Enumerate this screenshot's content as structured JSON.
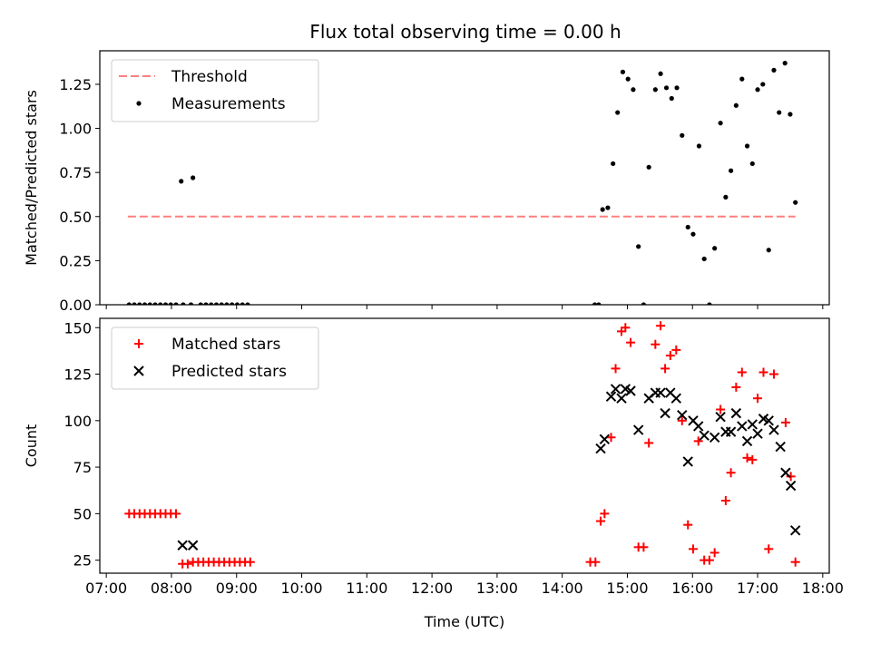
{
  "title": "Flux total observing time = 0.00 h",
  "chart_data": [
    {
      "type": "scatter",
      "panel": "top",
      "ylabel": "Matched/Predicted stars",
      "ylim": [
        0,
        1.44
      ],
      "yticks": [
        0.0,
        0.25,
        0.5,
        0.75,
        1.0,
        1.25
      ],
      "ytick_labels": [
        "0.00",
        "0.25",
        "0.50",
        "0.75",
        "1.00",
        "1.25"
      ],
      "xlim": [
        6.9,
        18.1
      ],
      "legend": {
        "placement": "top-left"
      },
      "threshold": {
        "name": "Threshold",
        "x": [
          7.33,
          17.58
        ],
        "y": 0.5,
        "color": "#ff7f7f"
      },
      "series": [
        {
          "name": "Measurements",
          "color": "#000000",
          "x": [
            7.35,
            7.43,
            7.51,
            7.59,
            7.67,
            7.75,
            7.83,
            7.91,
            7.99,
            8.07,
            8.15,
            8.18,
            8.3,
            8.33,
            8.45,
            8.53,
            8.61,
            8.69,
            8.77,
            8.85,
            8.93,
            9.01,
            9.09,
            9.17,
            14.5,
            14.56,
            14.62,
            14.7,
            14.78,
            14.85,
            14.93,
            15.01,
            15.09,
            15.17,
            15.25,
            15.33,
            15.43,
            15.51,
            15.6,
            15.68,
            15.76,
            15.84,
            15.93,
            16.01,
            16.1,
            16.18,
            16.26,
            16.34,
            16.43,
            16.51,
            16.59,
            16.67,
            16.76,
            16.84,
            16.92,
            17.0,
            17.08,
            17.17,
            17.25,
            17.33,
            17.42,
            17.5,
            17.58
          ],
          "y": [
            0.0,
            0.0,
            0.0,
            0.0,
            0.0,
            0.0,
            0.0,
            0.0,
            0.0,
            0.0,
            0.7,
            0.0,
            0.0,
            0.72,
            0.0,
            0.0,
            0.0,
            0.0,
            0.0,
            0.0,
            0.0,
            0.0,
            0.0,
            0.0,
            0.0,
            0.0,
            0.54,
            0.55,
            0.8,
            1.09,
            1.32,
            1.28,
            1.22,
            0.33,
            0.0,
            0.78,
            1.22,
            1.31,
            1.23,
            1.17,
            1.23,
            0.96,
            0.44,
            0.4,
            0.9,
            0.26,
            0.0,
            0.32,
            1.03,
            0.61,
            0.76,
            1.13,
            1.28,
            0.9,
            0.8,
            1.22,
            1.25,
            0.31,
            1.33,
            1.09,
            1.37,
            1.08,
            0.58
          ]
        }
      ]
    },
    {
      "type": "scatter",
      "panel": "bottom",
      "xlabel": "Time (UTC)",
      "ylabel": "Count",
      "ylim": [
        18,
        155
      ],
      "yticks": [
        25,
        50,
        75,
        100,
        125,
        150
      ],
      "ytick_labels": [
        "25",
        "50",
        "75",
        "100",
        "125",
        "150"
      ],
      "xlim": [
        6.9,
        18.1
      ],
      "xticks": [
        7,
        8,
        9,
        10,
        11,
        12,
        13,
        14,
        15,
        16,
        17,
        18
      ],
      "xtick_labels": [
        "07:00",
        "08:00",
        "09:00",
        "10:00",
        "11:00",
        "12:00",
        "13:00",
        "14:00",
        "15:00",
        "16:00",
        "17:00",
        "18:00"
      ],
      "legend": {
        "placement": "top-left"
      },
      "series": [
        {
          "name": "Matched stars",
          "marker": "plus",
          "color": "#ff0000",
          "x": [
            7.35,
            7.43,
            7.51,
            7.59,
            7.67,
            7.75,
            7.83,
            7.91,
            7.99,
            8.07,
            8.17,
            8.25,
            8.33,
            8.41,
            8.49,
            8.57,
            8.65,
            8.73,
            8.81,
            8.89,
            8.97,
            9.05,
            9.13,
            9.21,
            14.43,
            14.51,
            14.59,
            14.65,
            14.75,
            14.82,
            14.91,
            14.97,
            15.05,
            15.17,
            15.25,
            15.33,
            15.43,
            15.51,
            15.58,
            15.66,
            15.75,
            15.84,
            15.93,
            16.01,
            16.09,
            16.18,
            16.26,
            16.34,
            16.43,
            16.51,
            16.59,
            16.67,
            16.76,
            16.84,
            16.92,
            17.0,
            17.09,
            17.17,
            17.25,
            17.43,
            17.51,
            17.58
          ],
          "y": [
            50,
            50,
            50,
            50,
            50,
            50,
            50,
            50,
            50,
            50,
            23,
            23,
            24,
            24,
            24,
            24,
            24,
            24,
            24,
            24,
            24,
            24,
            24,
            24,
            24,
            24,
            46,
            50,
            91,
            128,
            148,
            150,
            142,
            32,
            32,
            88,
            141,
            151,
            128,
            135,
            138,
            100,
            44,
            31,
            89,
            25,
            25,
            29,
            106,
            57,
            72,
            118,
            126,
            80,
            79,
            112,
            126,
            31,
            125,
            99,
            70,
            24
          ]
        },
        {
          "name": "Predicted stars",
          "marker": "x",
          "color": "#000000",
          "x": [
            8.17,
            8.33,
            14.59,
            14.65,
            14.75,
            14.82,
            14.91,
            14.97,
            15.05,
            15.17,
            15.33,
            15.43,
            15.51,
            15.58,
            15.66,
            15.75,
            15.84,
            15.93,
            16.01,
            16.09,
            16.18,
            16.34,
            16.43,
            16.51,
            16.59,
            16.67,
            16.76,
            16.84,
            16.92,
            17.0,
            17.09,
            17.17,
            17.25,
            17.35,
            17.43,
            17.51,
            17.58
          ],
          "y": [
            33,
            33,
            85,
            90,
            113,
            117,
            112,
            117,
            116,
            95,
            112,
            115,
            115,
            104,
            115,
            112,
            103,
            78,
            100,
            97,
            92,
            91,
            102,
            94,
            94,
            104,
            97,
            89,
            98,
            93,
            101,
            100,
            95,
            86,
            72,
            65,
            41
          ]
        }
      ]
    }
  ]
}
